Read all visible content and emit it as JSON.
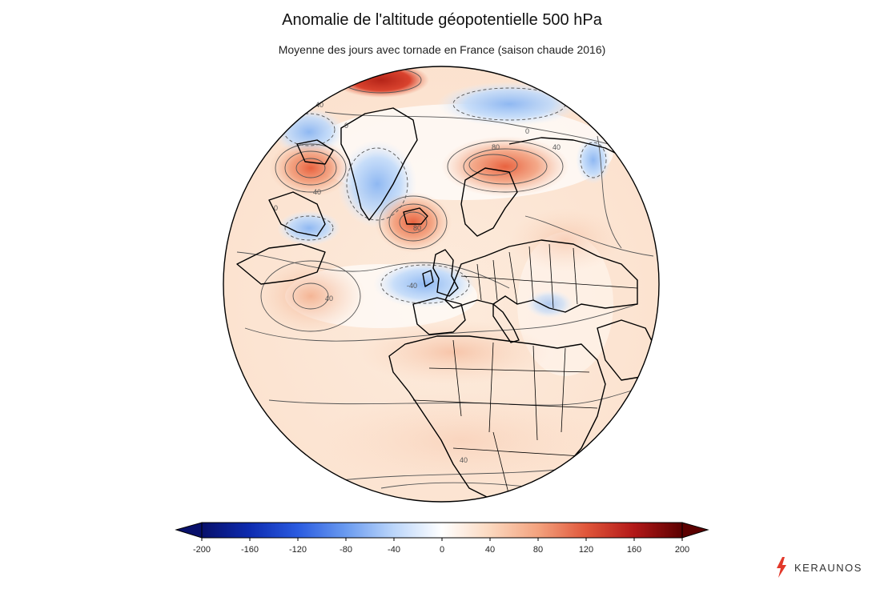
{
  "title": "Anomalie de l'altitude géopotentielle 500 hPa",
  "subtitle": "Moyenne des jours avec tornade en France (saison chaude 2016)",
  "contour_labels": [
    "40",
    "40",
    "0",
    "0",
    "0",
    "80",
    "40",
    "80",
    "-40",
    "40",
    "40"
  ],
  "colorbar": {
    "ticks": [
      "-200",
      "-160",
      "-120",
      "-80",
      "-40",
      "0",
      "40",
      "80",
      "120",
      "160",
      "200"
    ],
    "range": [
      -200,
      200
    ],
    "stops": [
      {
        "value": -200,
        "color": "#08106b"
      },
      {
        "value": -160,
        "color": "#0d2bb0"
      },
      {
        "value": -120,
        "color": "#2a5be0"
      },
      {
        "value": -80,
        "color": "#6a9bf0"
      },
      {
        "value": -40,
        "color": "#bcd6fa"
      },
      {
        "value": 0,
        "color": "#ffffff"
      },
      {
        "value": 40,
        "color": "#fbd8bf"
      },
      {
        "value": 80,
        "color": "#f3a27e"
      },
      {
        "value": 120,
        "color": "#e0563a"
      },
      {
        "value": 160,
        "color": "#b21818"
      },
      {
        "value": 200,
        "color": "#5c0000"
      }
    ],
    "extend_low_color": "#08106b",
    "extend_high_color": "#5c0000"
  },
  "brand": {
    "name": "KERAUNOS",
    "logo_icon": "lightning-bolt-icon",
    "accent": "#e2382a"
  }
}
